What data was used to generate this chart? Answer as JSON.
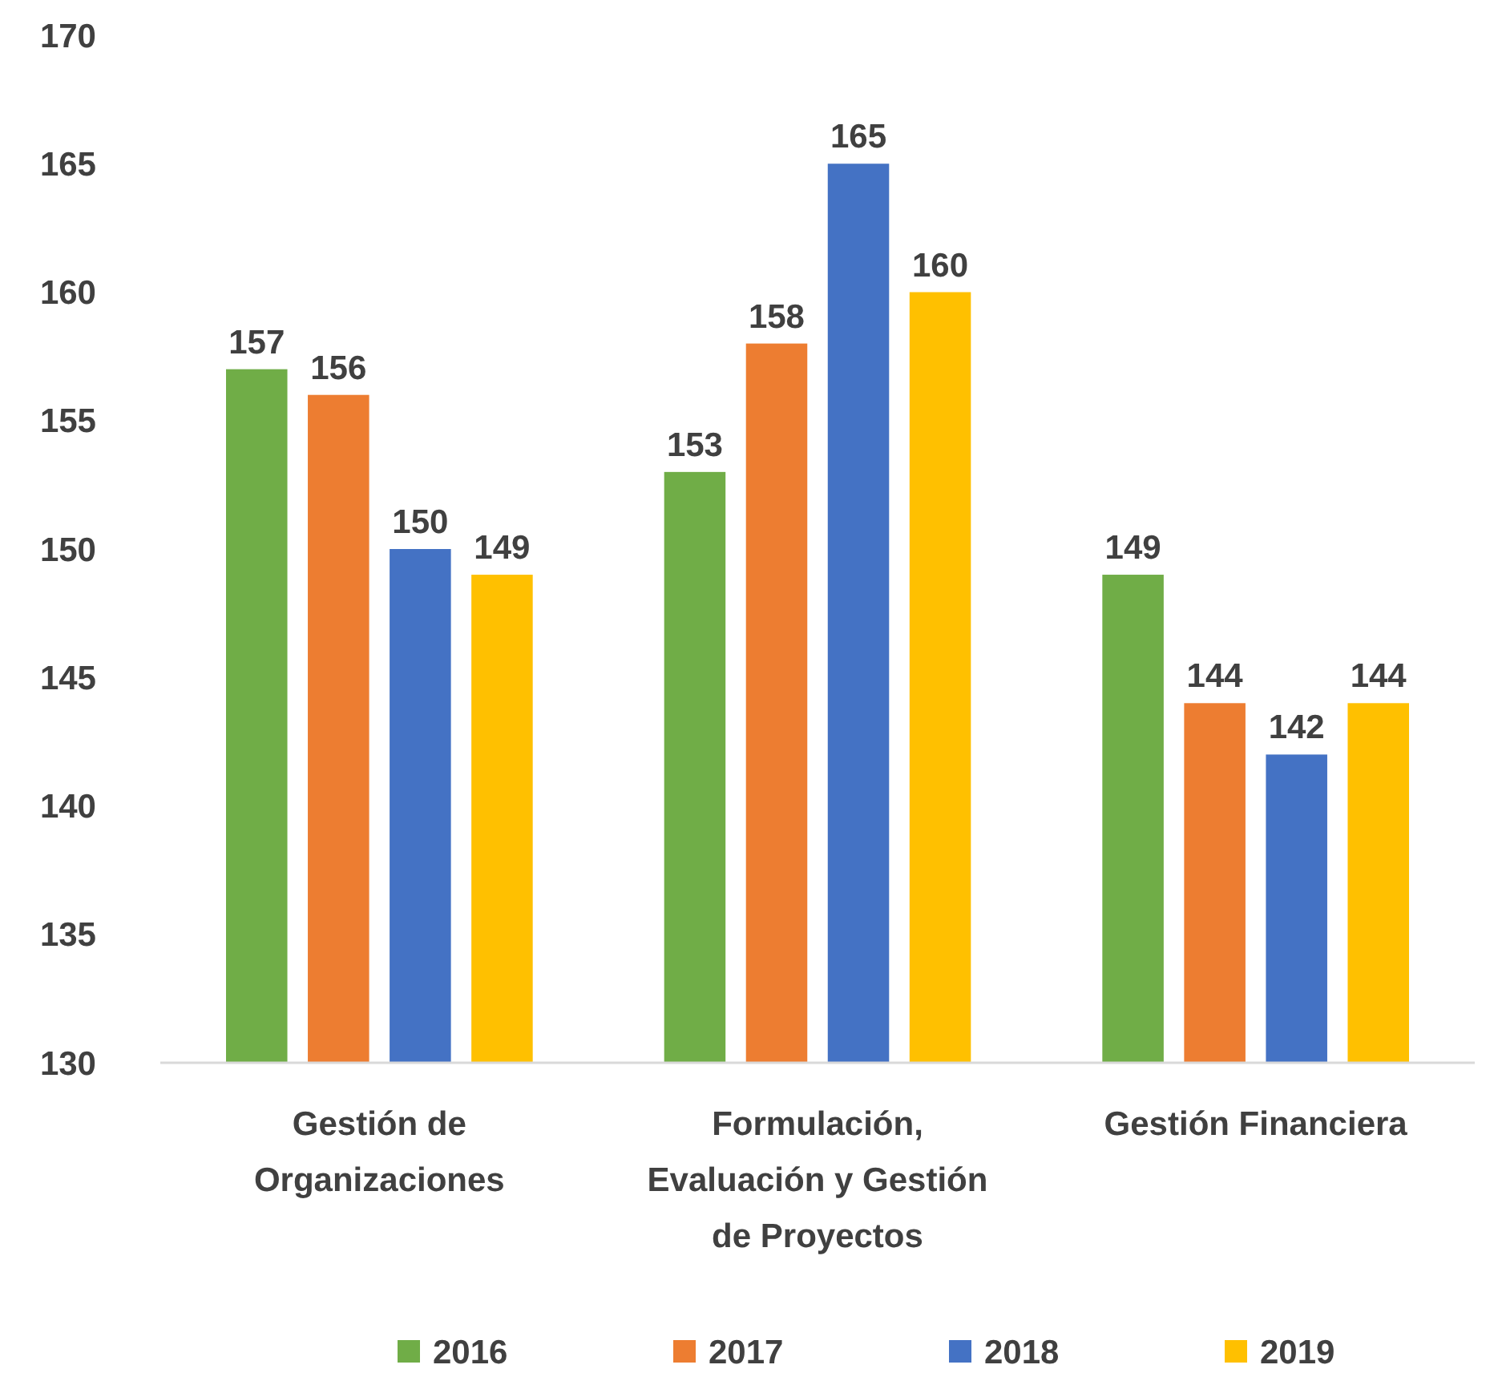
{
  "chart_data": {
    "type": "bar",
    "categories": [
      "Gestión de Organizaciones",
      "Formulación, Evaluación y Gestión de Proyectos",
      "Gestión Financiera"
    ],
    "series": [
      {
        "name": "2016",
        "color": "#70ad47",
        "values": [
          157,
          153,
          149
        ]
      },
      {
        "name": "2017",
        "color": "#ed7d31",
        "values": [
          156,
          158,
          144
        ]
      },
      {
        "name": "2018",
        "color": "#4472c4",
        "values": [
          150,
          165,
          142
        ]
      },
      {
        "name": "2019",
        "color": "#ffc000",
        "values": [
          149,
          160,
          144
        ]
      }
    ],
    "ylim": [
      130,
      170
    ],
    "yticks": [
      130,
      135,
      140,
      145,
      150,
      155,
      160,
      165,
      170
    ],
    "data_labels": true,
    "legend": "bottom",
    "grid": false
  }
}
